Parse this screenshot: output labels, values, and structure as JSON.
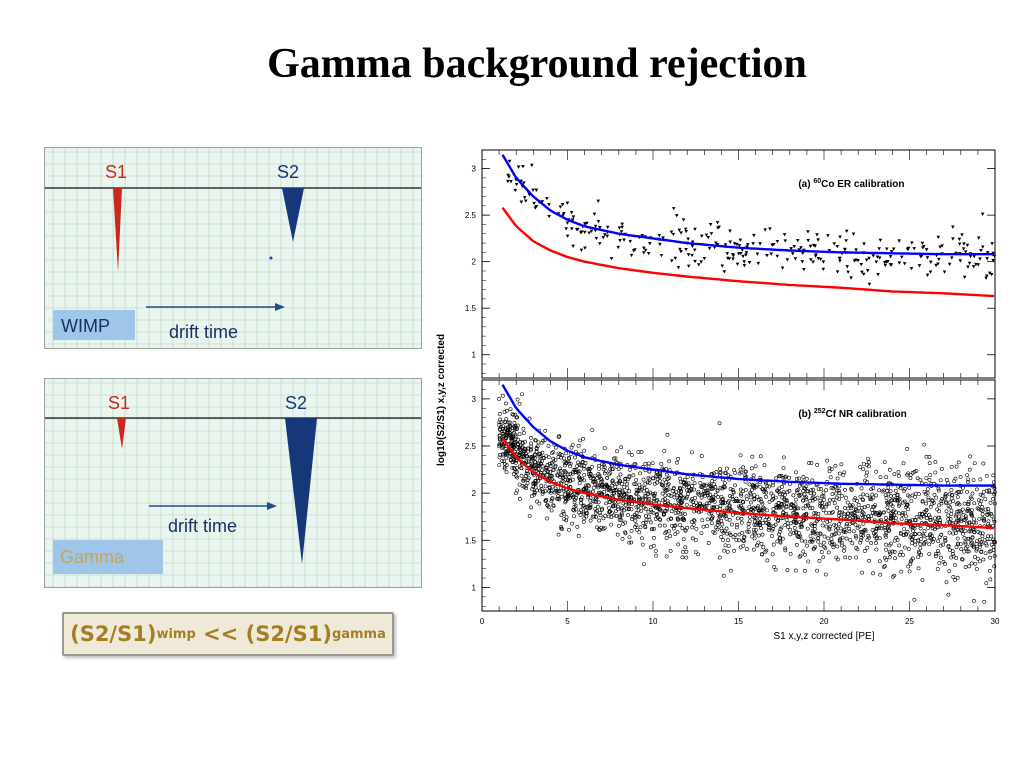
{
  "slide": {
    "title": "Gamma background rejection"
  },
  "wimp_panel": {
    "s1_label": "S1",
    "s2_label": "S2",
    "tag": "WIMP",
    "arrow_label": "drift time"
  },
  "gamma_panel": {
    "s1_label": "S1",
    "s2_label": "S2",
    "tag": "Gamma",
    "arrow_label": "drift time"
  },
  "formula": {
    "lhs": "(S2/S1)",
    "lhs_sub": "wimp",
    "op": " << ",
    "rhs": "(S2/S1)",
    "rhs_sub": "gamma"
  },
  "colors": {
    "s1": "#c8281e",
    "s2": "#16377a",
    "grid_bg": "#e9f5ee",
    "grid_line": "#b9cfc0",
    "tag_bg": "#9fc6e8",
    "upper_band": "#0000ff",
    "lower_band": "#ff0000",
    "formula_text": "#a47e24"
  },
  "chart_data": [
    {
      "type": "scatter",
      "panel_label_prefix": "(a) ",
      "panel_label_sup": "60",
      "panel_label_suffix": "Co ER calibration",
      "xlim": [
        0,
        30
      ],
      "ylim": [
        0.75,
        3.2
      ],
      "yticks": [
        "1",
        "1.5",
        "2",
        "2.5",
        "3"
      ],
      "ytick_values": [
        1,
        1.5,
        2,
        2.5,
        3
      ],
      "show_xtick_labels": false,
      "marker": "triangle-down",
      "curves": [
        {
          "color": "blue",
          "x": [
            1.2,
            2,
            3,
            4,
            5,
            6,
            8,
            10,
            12,
            15,
            18,
            21,
            24,
            27,
            30
          ],
          "y": [
            3.15,
            2.9,
            2.7,
            2.55,
            2.45,
            2.38,
            2.3,
            2.25,
            2.2,
            2.15,
            2.12,
            2.1,
            2.09,
            2.08,
            2.08
          ]
        },
        {
          "color": "red",
          "x": [
            1.2,
            2,
            3,
            4,
            5,
            6,
            8,
            10,
            12,
            15,
            18,
            21,
            24,
            27,
            30
          ],
          "y": [
            2.58,
            2.38,
            2.22,
            2.12,
            2.05,
            2.0,
            1.93,
            1.88,
            1.84,
            1.79,
            1.75,
            1.72,
            1.68,
            1.66,
            1.63
          ]
        }
      ],
      "scatter": {
        "seed": 7,
        "n": 330,
        "center_fn": "upper_band_minus",
        "offset": 0.0,
        "spread": 0.12
      }
    },
    {
      "type": "scatter",
      "panel_label_prefix": "(b) ",
      "panel_label_sup": "252",
      "panel_label_suffix": "Cf NR calibration",
      "xlim": [
        0,
        30
      ],
      "ylim": [
        0.75,
        3.2
      ],
      "yticks": [
        "1",
        "1.5",
        "2",
        "2.5",
        "3"
      ],
      "ytick_values": [
        1,
        1.5,
        2,
        2.5,
        3
      ],
      "xticks": [
        "0",
        "5",
        "10",
        "15",
        "20",
        "25",
        "30"
      ],
      "xtick_values": [
        0,
        5,
        10,
        15,
        20,
        25,
        30
      ],
      "xlabel": "S1 x,y,z corrected [PE]",
      "marker": "open-circle",
      "curves": [
        {
          "color": "blue",
          "x": [
            1.2,
            2,
            3,
            4,
            5,
            6,
            8,
            10,
            12,
            15,
            18,
            21,
            24,
            27,
            30
          ],
          "y": [
            3.15,
            2.9,
            2.7,
            2.55,
            2.45,
            2.38,
            2.3,
            2.25,
            2.2,
            2.15,
            2.12,
            2.1,
            2.09,
            2.08,
            2.08
          ]
        },
        {
          "color": "red",
          "x": [
            1.2,
            2,
            3,
            4,
            5,
            6,
            8,
            10,
            12,
            15,
            18,
            21,
            24,
            27,
            30
          ],
          "y": [
            2.58,
            2.38,
            2.22,
            2.12,
            2.05,
            2.0,
            1.93,
            1.88,
            1.84,
            1.79,
            1.75,
            1.72,
            1.68,
            1.66,
            1.63
          ]
        }
      ],
      "scatter": {
        "seed": 11,
        "n": 2600,
        "center_fn": "lower_band",
        "offset": 0.05,
        "spread": 0.2
      }
    }
  ],
  "chart_common": {
    "ylabel": "log10(S2/S1) x,y,z corrected"
  }
}
